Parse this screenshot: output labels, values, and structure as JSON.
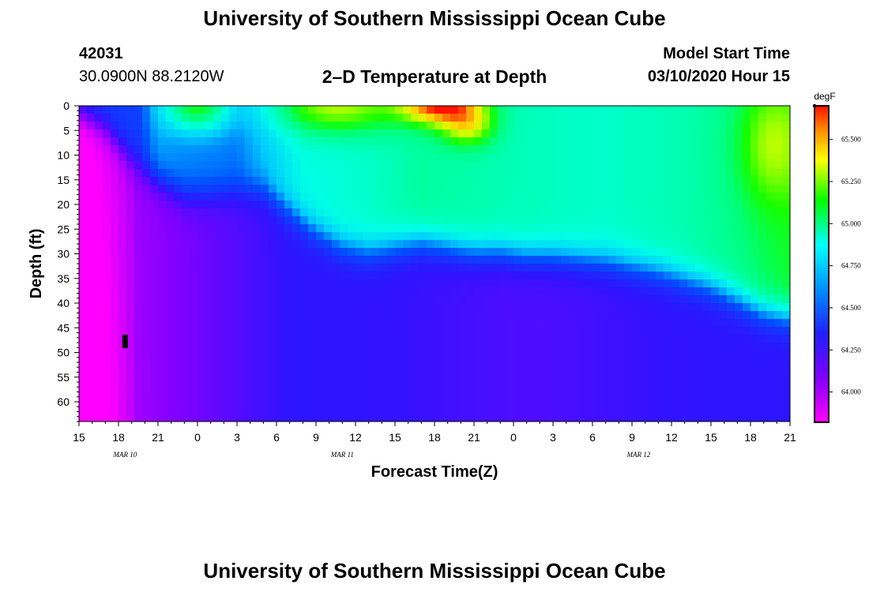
{
  "header": {
    "title": "University of Southern Mississippi Ocean Cube",
    "station_id": "42031",
    "station_location": "30.0900N 88.2120W",
    "plot_title": "2–D Temperature at Depth",
    "model_start_label": "Model Start Time",
    "model_start_time": "03/10/2020 Hour 15"
  },
  "footer": {
    "title": "University of Southern Mississippi Ocean Cube"
  },
  "chart_data": {
    "type": "heatmap",
    "xlabel": "Forecast Time(Z)",
    "ylabel": "Depth (ft)",
    "units": "degF",
    "x_tick_labels": [
      "15",
      "18",
      "21",
      "0",
      "3",
      "6",
      "9",
      "12",
      "15",
      "18",
      "21",
      "0",
      "3",
      "6",
      "9",
      "12",
      "15",
      "18",
      "21"
    ],
    "x_hours_range": [
      0,
      54
    ],
    "date_labels": [
      {
        "text": "MAR  10",
        "hour": 3.5
      },
      {
        "text": "MAR  11",
        "hour": 20
      },
      {
        "text": "MAR  12",
        "hour": 42.5
      }
    ],
    "y_ticks": [
      0,
      5,
      10,
      15,
      20,
      25,
      30,
      35,
      40,
      45,
      50,
      55,
      60
    ],
    "ylim": [
      0,
      64
    ],
    "y_inverted": true,
    "colorbar_ticks": [
      "65.500",
      "65.250",
      "65.000",
      "64.750",
      "64.500",
      "64.250",
      "64.000"
    ],
    "colorbar_values": [
      65.5,
      65.25,
      65.0,
      64.75,
      64.5,
      64.25,
      64.0
    ],
    "colorbar_range": [
      63.82,
      65.7
    ],
    "marker": {
      "hour": 3.5,
      "depth": 48
    }
  },
  "colors": {
    "magenta": "#ff00ff",
    "blue": "#2020ff",
    "cyan": "#00ffff",
    "green": "#00ff00",
    "yellow": "#ffff00",
    "red": "#ff0000",
    "marker": "#000000"
  }
}
